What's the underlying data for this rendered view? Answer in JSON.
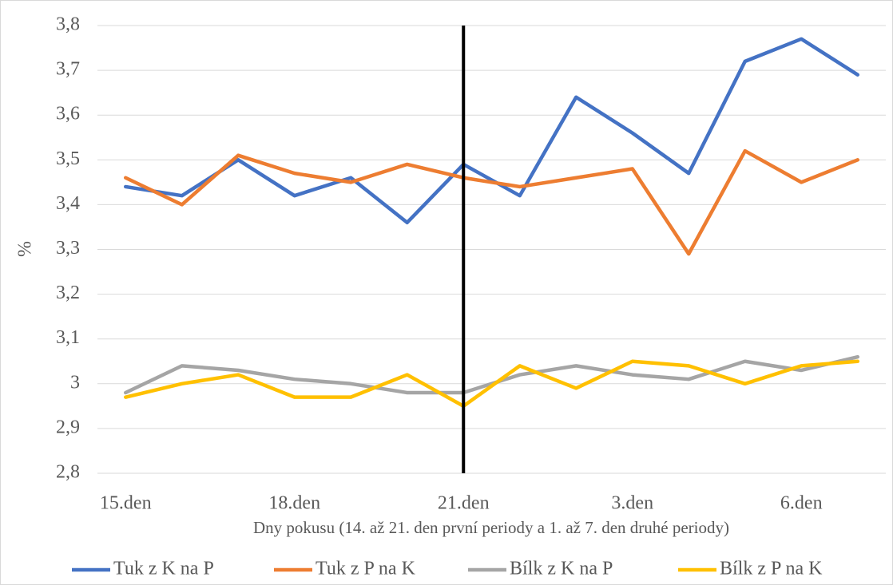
{
  "chart_data": {
    "type": "line",
    "x_label": "Dny pokusu (14. až 21. den první periody a 1. až 7. den druhé periody)",
    "y_label": "%",
    "categories": [
      "15.den",
      null,
      null,
      "18.den",
      null,
      null,
      "21.den",
      null,
      null,
      "3.den",
      null,
      null,
      "6.den",
      null
    ],
    "series": [
      {
        "name": "Tuk z K na P",
        "color": "#4472c4",
        "values": [
          3.44,
          3.42,
          3.5,
          3.42,
          3.46,
          3.36,
          3.49,
          3.42,
          3.64,
          3.56,
          3.47,
          3.72,
          3.77,
          3.69
        ]
      },
      {
        "name": "Tuk z P na K",
        "color": "#ed7d31",
        "values": [
          3.46,
          3.4,
          3.51,
          3.47,
          3.45,
          3.49,
          3.46,
          3.44,
          3.46,
          3.48,
          3.29,
          3.52,
          3.45,
          3.5
        ]
      },
      {
        "name": "Bílk z K na P",
        "color": "#a5a5a5",
        "values": [
          2.98,
          3.04,
          3.03,
          3.01,
          3.0,
          2.98,
          2.98,
          3.02,
          3.04,
          3.02,
          3.01,
          3.05,
          3.03,
          3.06
        ]
      },
      {
        "name": "Bílk z P na K",
        "color": "#ffc000",
        "values": [
          2.97,
          3.0,
          3.02,
          2.97,
          2.97,
          3.02,
          2.95,
          3.04,
          2.99,
          3.05,
          3.04,
          3.0,
          3.04,
          3.05
        ]
      }
    ],
    "ylim": [
      2.8,
      3.8
    ],
    "yticks": [
      {
        "value": 2.8,
        "label": "2,8"
      },
      {
        "value": 2.9,
        "label": "2,9"
      },
      3,
      {
        "value": 3.1,
        "label": "3,1"
      },
      {
        "value": 3.2,
        "label": "3,2"
      },
      {
        "value": 3.3,
        "label": "3,3"
      },
      {
        "value": 3.4,
        "label": "3,4"
      },
      {
        "value": 3.5,
        "label": "3,5"
      },
      {
        "value": 3.6,
        "label": "3,6"
      },
      {
        "value": 3.7,
        "label": "3,7"
      },
      {
        "value": 3.8,
        "label": "3,8"
      }
    ],
    "grid": true,
    "legend": "bottom",
    "reference_line": {
      "category_index": 6,
      "color": "#000000"
    }
  }
}
